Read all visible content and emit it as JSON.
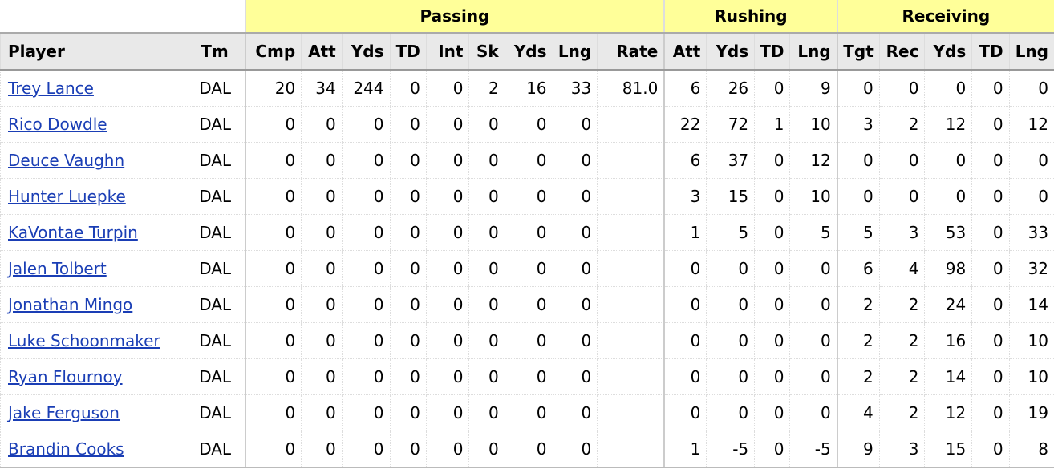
{
  "groups": [
    "",
    "Passing",
    "Rushing",
    "Receiving"
  ],
  "columns": [
    "Player",
    "Tm",
    "Cmp",
    "Att",
    "Yds",
    "TD",
    "Int",
    "Sk",
    "Yds",
    "Lng",
    "Rate",
    "Att",
    "Yds",
    "TD",
    "Lng",
    "Tgt",
    "Rec",
    "Yds",
    "TD",
    "Lng"
  ],
  "rows": [
    [
      "Trey Lance",
      "DAL",
      "20",
      "34",
      "244",
      "0",
      "0",
      "2",
      "16",
      "33",
      "81.0",
      "6",
      "26",
      "0",
      "9",
      "0",
      "0",
      "0",
      "0",
      "0"
    ],
    [
      "Rico Dowdle",
      "DAL",
      "0",
      "0",
      "0",
      "0",
      "0",
      "0",
      "0",
      "0",
      "",
      "22",
      "72",
      "1",
      "10",
      "3",
      "2",
      "12",
      "0",
      "12"
    ],
    [
      "Deuce Vaughn",
      "DAL",
      "0",
      "0",
      "0",
      "0",
      "0",
      "0",
      "0",
      "0",
      "",
      "6",
      "37",
      "0",
      "12",
      "0",
      "0",
      "0",
      "0",
      "0"
    ],
    [
      "Hunter Luepke",
      "DAL",
      "0",
      "0",
      "0",
      "0",
      "0",
      "0",
      "0",
      "0",
      "",
      "3",
      "15",
      "0",
      "10",
      "0",
      "0",
      "0",
      "0",
      "0"
    ],
    [
      "KaVontae Turpin",
      "DAL",
      "0",
      "0",
      "0",
      "0",
      "0",
      "0",
      "0",
      "0",
      "",
      "1",
      "5",
      "0",
      "5",
      "5",
      "3",
      "53",
      "0",
      "33"
    ],
    [
      "Jalen Tolbert",
      "DAL",
      "0",
      "0",
      "0",
      "0",
      "0",
      "0",
      "0",
      "0",
      "",
      "0",
      "0",
      "0",
      "0",
      "6",
      "4",
      "98",
      "0",
      "32"
    ],
    [
      "Jonathan Mingo",
      "DAL",
      "0",
      "0",
      "0",
      "0",
      "0",
      "0",
      "0",
      "0",
      "",
      "0",
      "0",
      "0",
      "0",
      "2",
      "2",
      "24",
      "0",
      "14"
    ],
    [
      "Luke Schoonmaker",
      "DAL",
      "0",
      "0",
      "0",
      "0",
      "0",
      "0",
      "0",
      "0",
      "",
      "0",
      "0",
      "0",
      "0",
      "2",
      "2",
      "16",
      "0",
      "10"
    ],
    [
      "Ryan Flournoy",
      "DAL",
      "0",
      "0",
      "0",
      "0",
      "0",
      "0",
      "0",
      "0",
      "",
      "0",
      "0",
      "0",
      "0",
      "2",
      "2",
      "14",
      "0",
      "10"
    ],
    [
      "Jake Ferguson",
      "DAL",
      "0",
      "0",
      "0",
      "0",
      "0",
      "0",
      "0",
      "0",
      "",
      "0",
      "0",
      "0",
      "0",
      "4",
      "2",
      "12",
      "0",
      "19"
    ],
    [
      "Brandin Cooks",
      "DAL",
      "0",
      "0",
      "0",
      "0",
      "0",
      "0",
      "0",
      "0",
      "",
      "1",
      "-5",
      "0",
      "-5",
      "9",
      "3",
      "15",
      "0",
      "8"
    ]
  ]
}
